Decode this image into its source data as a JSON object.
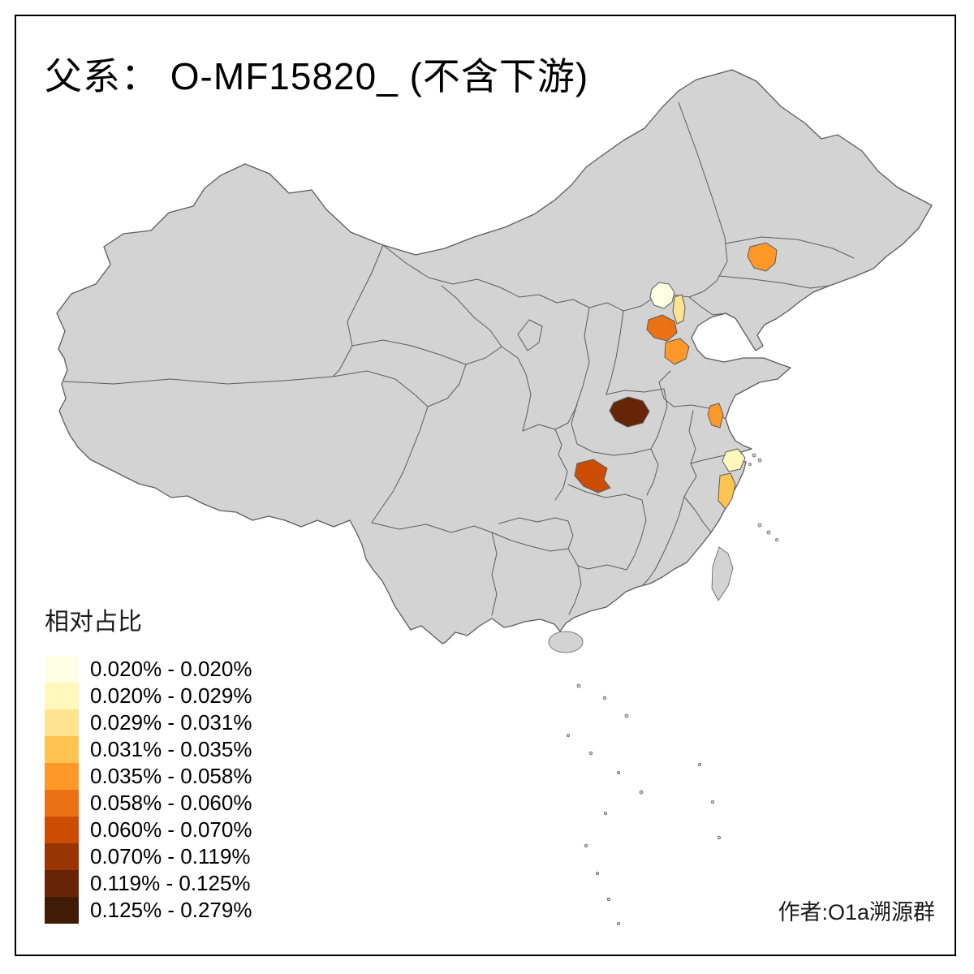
{
  "title": "父系： O-MF15820_ (不含下游)",
  "attribution": "作者:O1a溯源群",
  "legend": {
    "title": "相对占比",
    "entries": [
      {
        "color": "#FFFFE5",
        "label": "0.020% - 0.020%"
      },
      {
        "color": "#FFF7BC",
        "label": "0.020% - 0.029%"
      },
      {
        "color": "#FEE391",
        "label": "0.029% - 0.031%"
      },
      {
        "color": "#FEC44F",
        "label": "0.031% - 0.035%"
      },
      {
        "color": "#FE9929",
        "label": "0.035% - 0.058%"
      },
      {
        "color": "#EC7014",
        "label": "0.058% - 0.060%"
      },
      {
        "color": "#CC4C02",
        "label": "0.060% - 0.070%"
      },
      {
        "color": "#993404",
        "label": "0.070% - 0.119%"
      },
      {
        "color": "#662506",
        "label": "0.119% - 0.125%"
      },
      {
        "color": "#401C05",
        "label": "0.125% - 0.279%"
      }
    ]
  },
  "map": {
    "base_fill": "#D3D3D3",
    "boundary_color": "#5c5c5c",
    "background": "#FFFFFF",
    "regions": [
      {
        "id": "beijing",
        "color": "#FFFFE5",
        "band": "0.020% - 0.020%"
      },
      {
        "id": "zhejiang-northeast",
        "color": "#FFF7BC",
        "band": "0.020% - 0.029%"
      },
      {
        "id": "tianjin-north",
        "color": "#FEE391",
        "band": "0.029% - 0.031%"
      },
      {
        "id": "zhejiang-southeast",
        "color": "#FEC44F",
        "band": "0.031% - 0.035%"
      },
      {
        "id": "liaoning-central",
        "color": "#FE9929",
        "band": "0.035% - 0.058%"
      },
      {
        "id": "hebei-south",
        "color": "#FE9929",
        "band": "0.035% - 0.058%"
      },
      {
        "id": "jiangsu-central",
        "color": "#FE9929",
        "band": "0.035% - 0.058%"
      },
      {
        "id": "hebei-central",
        "color": "#EC7014",
        "band": "0.058% - 0.060%"
      },
      {
        "id": "hubei-west",
        "color": "#CC4C02",
        "band": "0.060% - 0.070%"
      },
      {
        "id": "henan-southwest",
        "color": "#662506",
        "band": "0.119% - 0.125%"
      }
    ]
  }
}
